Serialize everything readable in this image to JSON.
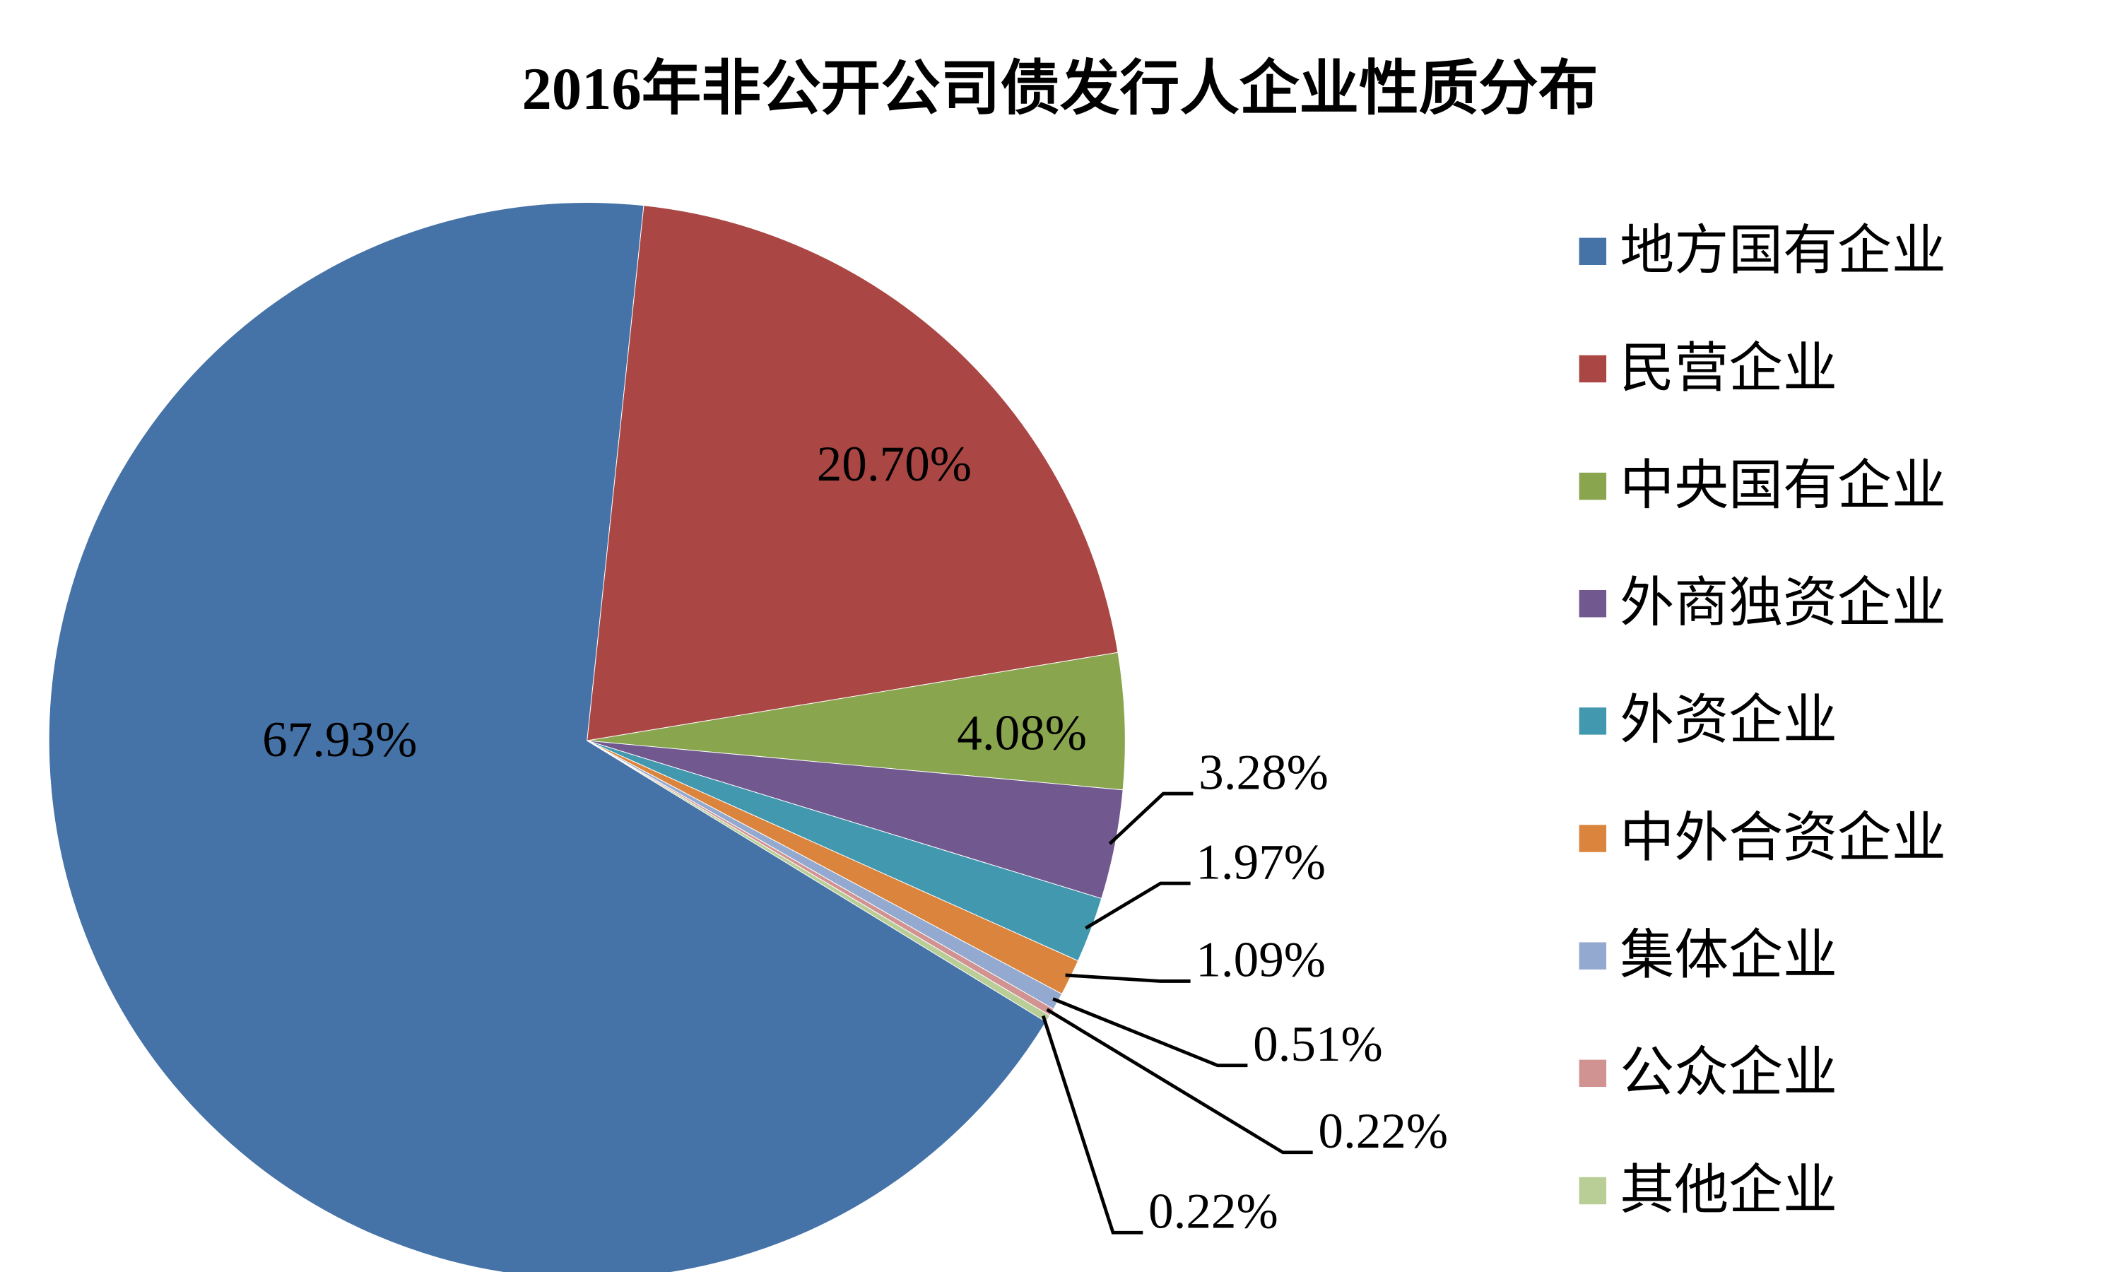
{
  "chart_data": {
    "type": "pie",
    "title": "2016年非公开公司债发行人企业性质分布",
    "categories": [
      "地方国有企业",
      "民营企业",
      "中央国有企业",
      "外商独资企业",
      "外资企业",
      "中外合资企业",
      "集体企业",
      "公众企业",
      "其他企业"
    ],
    "values": [
      67.93,
      20.7,
      4.08,
      3.28,
      1.97,
      1.09,
      0.51,
      0.22,
      0.22
    ],
    "value_labels": [
      "67.93%",
      "20.70%",
      "4.08%",
      "3.28%",
      "1.97%",
      "1.09%",
      "0.51%",
      "0.22%",
      "0.22%"
    ],
    "colors": [
      "#4572a7",
      "#aa4643",
      "#89a54e",
      "#71588f",
      "#4198af",
      "#db843d",
      "#93a9cf",
      "#d19392",
      "#b9cd96"
    ],
    "legend": "right"
  }
}
